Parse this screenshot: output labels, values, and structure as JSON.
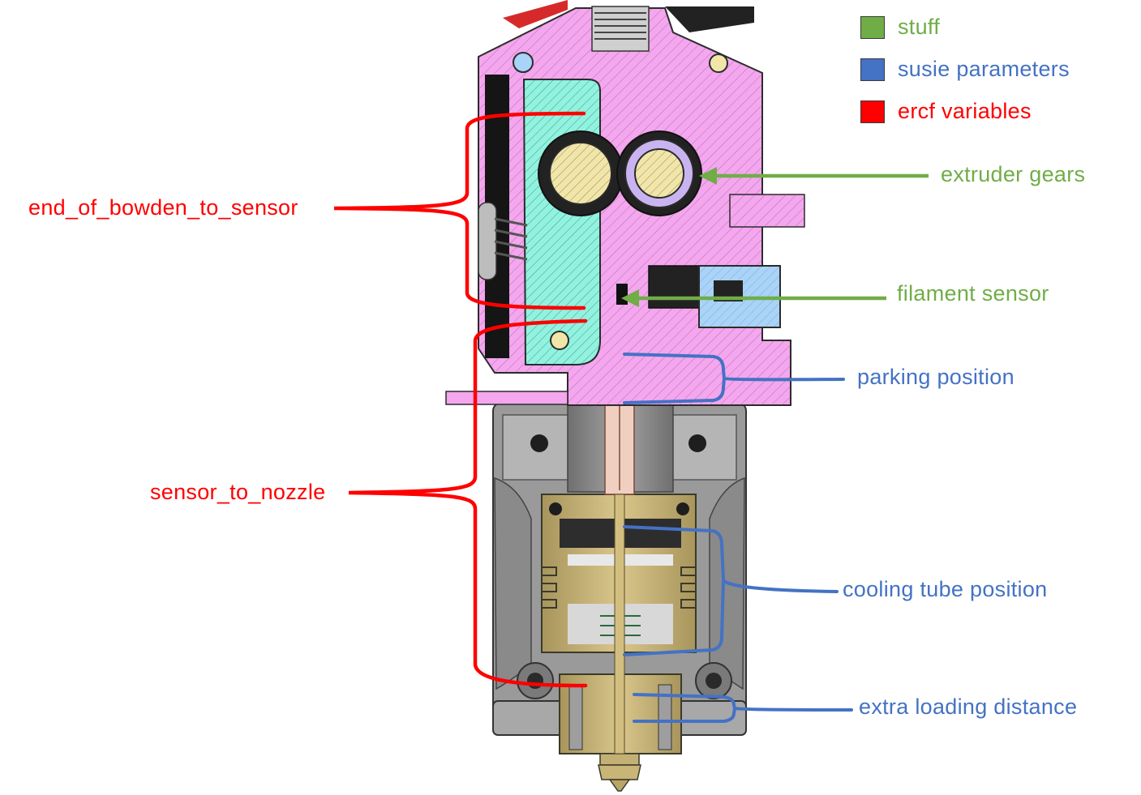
{
  "colors": {
    "stuff": "#70ad47",
    "susie": "#4472c4",
    "ercf": "#ff0000",
    "body_pink": "#f4a6ee",
    "lever_teal": "#8ff3df",
    "sensor_blue": "#a9d3f8",
    "brass": "#cfba7e",
    "housing_grey": "#8c8c8c"
  },
  "legend": [
    {
      "label": "stuff",
      "color": "#70ad47"
    },
    {
      "label": "susie parameters",
      "color": "#4472c4"
    },
    {
      "label": "ercf variables",
      "color": "#ff0000"
    }
  ],
  "labels": {
    "end_of_bowden_to_sensor": "end_of_bowden_to_sensor",
    "sensor_to_nozzle": "sensor_to_nozzle",
    "extruder_gears": "extruder gears",
    "filament_sensor": "filament sensor",
    "parking_position": "parking position",
    "cooling_tube_position": "cooling tube position",
    "extra_loading_distance": "extra loading distance"
  }
}
